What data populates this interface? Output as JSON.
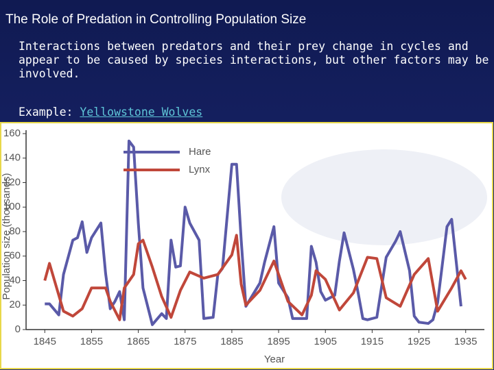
{
  "title": "The Role of Predation in Controlling Population Size",
  "body": "Interactions between predators and their prey change in cycles and appear to be caused by species interactions, but other factors may be involved.",
  "example": {
    "label": "Example:",
    "link": "Yellowstone Wolves"
  },
  "chart_data": {
    "type": "line",
    "x_label": "Year",
    "y_label": "Population size (thousands)",
    "xlim": [
      1841,
      1939
    ],
    "ylim": [
      0,
      160
    ],
    "xticks": [
      1845,
      1855,
      1865,
      1875,
      1885,
      1895,
      1905,
      1915,
      1925,
      1935
    ],
    "yticks": [
      0,
      20,
      40,
      60,
      80,
      100,
      120,
      140,
      160
    ],
    "series": [
      {
        "name": "Hare",
        "color": "#5a5aa8",
        "x": [
          1845,
          1846,
          1848,
          1849,
          1851,
          1852,
          1853,
          1854,
          1855,
          1857,
          1858,
          1859,
          1860,
          1861,
          1862,
          1863,
          1864,
          1865,
          1866,
          1868,
          1870,
          1871,
          1872,
          1873,
          1874,
          1875,
          1876,
          1878,
          1879,
          1881,
          1882,
          1883,
          1885,
          1886,
          1887,
          1888,
          1891,
          1892,
          1894,
          1895,
          1897,
          1898,
          1900,
          1901,
          1902,
          1903,
          1904,
          1905,
          1907,
          1908,
          1909,
          1911,
          1912,
          1913,
          1914,
          1916,
          1918,
          1920,
          1921,
          1923,
          1924,
          1925,
          1927,
          1928,
          1929,
          1931,
          1932,
          1934
        ],
        "values": [
          21,
          21,
          12,
          45,
          73,
          75,
          88,
          63,
          75,
          87,
          46,
          17,
          23,
          31,
          8,
          154,
          149,
          87,
          34,
          4,
          13,
          9,
          73,
          51,
          52,
          100,
          87,
          73,
          9,
          10,
          45,
          50,
          135,
          135,
          73,
          19,
          38,
          55,
          84,
          38,
          26,
          9,
          9,
          9,
          68,
          55,
          31,
          24,
          28,
          56,
          79,
          49,
          30,
          9,
          8,
          10,
          59,
          72,
          80,
          48,
          11,
          6,
          5,
          8,
          22,
          84,
          90,
          19
        ]
      },
      {
        "name": "Lynx",
        "color": "#c0473a",
        "x": [
          1845,
          1846,
          1848,
          1849,
          1851,
          1853,
          1855,
          1858,
          1859,
          1861,
          1862,
          1864,
          1865,
          1866,
          1868,
          1870,
          1872,
          1874,
          1876,
          1879,
          1882,
          1885,
          1886,
          1887,
          1888,
          1891,
          1894,
          1897,
          1900,
          1902,
          1903,
          1905,
          1908,
          1911,
          1914,
          1916,
          1918,
          1921,
          1924,
          1927,
          1929,
          1932,
          1934,
          1935
        ],
        "values": [
          40,
          54,
          28,
          15,
          11,
          17,
          34,
          34,
          23,
          8,
          34,
          45,
          70,
          73,
          51,
          27,
          10,
          32,
          47,
          42,
          45,
          61,
          77,
          37,
          20,
          32,
          56,
          23,
          12,
          28,
          48,
          41,
          16,
          30,
          59,
          58,
          26,
          19,
          45,
          58,
          15,
          34,
          48,
          41
        ]
      }
    ]
  }
}
